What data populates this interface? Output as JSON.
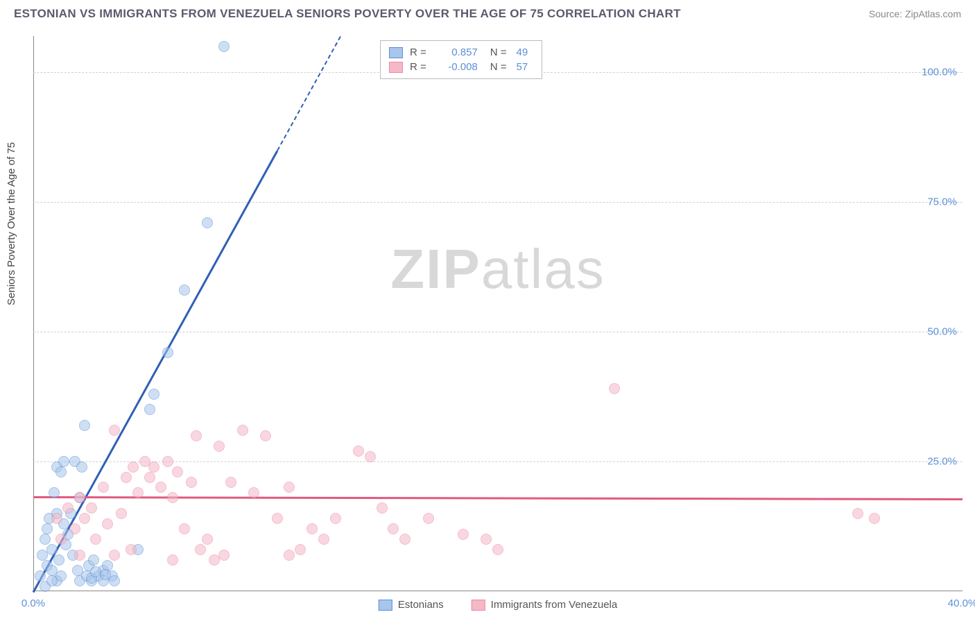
{
  "title": "ESTONIAN VS IMMIGRANTS FROM VENEZUELA SENIORS POVERTY OVER THE AGE OF 75 CORRELATION CHART",
  "source": "Source: ZipAtlas.com",
  "y_axis_label": "Seniors Poverty Over the Age of 75",
  "watermark_bold": "ZIP",
  "watermark_light": "atlas",
  "chart": {
    "type": "scatter",
    "xlim": [
      0,
      40
    ],
    "ylim": [
      0,
      107
    ],
    "x_ticks": [
      0,
      40
    ],
    "x_tick_labels": [
      "0.0%",
      "40.0%"
    ],
    "y_ticks": [
      25,
      50,
      75,
      100
    ],
    "y_tick_labels": [
      "25.0%",
      "50.0%",
      "75.0%",
      "100.0%"
    ],
    "background_color": "#ffffff",
    "grid_color": "#d0d0d0",
    "axis_color": "#888888",
    "tick_label_color": "#5b8fd9",
    "tick_fontsize": 15,
    "point_radius": 8,
    "series": [
      {
        "name": "Estonians",
        "fill": "#a8c5eb",
        "stroke": "#5b8fd9",
        "fill_opacity": 0.55,
        "r": 0.857,
        "n": 49,
        "trend": {
          "slope": 8.1,
          "intercept": 0,
          "color": "#2f5fb5",
          "dash_from_x": 10.5
        },
        "points": [
          [
            0.3,
            3
          ],
          [
            0.4,
            7
          ],
          [
            0.5,
            10
          ],
          [
            0.6,
            12
          ],
          [
            0.6,
            5
          ],
          [
            0.7,
            14
          ],
          [
            0.8,
            8
          ],
          [
            0.8,
            4
          ],
          [
            0.9,
            19
          ],
          [
            1.0,
            24
          ],
          [
            1.0,
            15
          ],
          [
            1.1,
            6
          ],
          [
            1.2,
            23
          ],
          [
            1.3,
            25
          ],
          [
            1.3,
            13
          ],
          [
            1.4,
            9
          ],
          [
            1.5,
            11
          ],
          [
            1.6,
            15
          ],
          [
            1.7,
            7
          ],
          [
            1.8,
            25
          ],
          [
            1.9,
            4
          ],
          [
            2.0,
            18
          ],
          [
            2.0,
            2
          ],
          [
            2.1,
            24
          ],
          [
            2.2,
            32
          ],
          [
            2.3,
            3
          ],
          [
            2.4,
            5
          ],
          [
            2.5,
            2
          ],
          [
            2.6,
            6
          ],
          [
            2.8,
            3
          ],
          [
            3.0,
            4
          ],
          [
            3.0,
            2
          ],
          [
            3.2,
            5
          ],
          [
            3.4,
            3
          ],
          [
            3.5,
            2
          ],
          [
            4.5,
            8
          ],
          [
            2.5,
            2.5
          ],
          [
            2.7,
            3.8
          ],
          [
            3.1,
            3.2
          ],
          [
            5.0,
            35
          ],
          [
            5.2,
            38
          ],
          [
            5.8,
            46
          ],
          [
            6.5,
            58
          ],
          [
            7.5,
            71
          ],
          [
            8.2,
            105
          ],
          [
            1.0,
            2
          ],
          [
            0.5,
            1
          ],
          [
            0.8,
            2
          ],
          [
            1.2,
            3
          ]
        ]
      },
      {
        "name": "Immigrants from Venezuela",
        "fill": "#f5b8c7",
        "stroke": "#e88aa3",
        "fill_opacity": 0.55,
        "r": -0.008,
        "n": 57,
        "trend": {
          "slope": -0.01,
          "intercept": 18.3,
          "color": "#e05a80",
          "dash_from_x": 999
        },
        "points": [
          [
            1.0,
            14
          ],
          [
            1.2,
            10
          ],
          [
            1.5,
            16
          ],
          [
            1.8,
            12
          ],
          [
            2.0,
            18
          ],
          [
            2.2,
            14
          ],
          [
            2.5,
            16
          ],
          [
            2.7,
            10
          ],
          [
            3.0,
            20
          ],
          [
            3.2,
            13
          ],
          [
            3.5,
            31
          ],
          [
            3.8,
            15
          ],
          [
            4.0,
            22
          ],
          [
            4.3,
            24
          ],
          [
            4.5,
            19
          ],
          [
            4.8,
            25
          ],
          [
            5.0,
            22
          ],
          [
            5.2,
            24
          ],
          [
            5.5,
            20
          ],
          [
            5.8,
            25
          ],
          [
            6.0,
            18
          ],
          [
            6.2,
            23
          ],
          [
            6.5,
            12
          ],
          [
            6.8,
            21
          ],
          [
            7.0,
            30
          ],
          [
            7.2,
            8
          ],
          [
            7.5,
            10
          ],
          [
            8.0,
            28
          ],
          [
            8.5,
            21
          ],
          [
            9.0,
            31
          ],
          [
            9.5,
            19
          ],
          [
            10.0,
            30
          ],
          [
            10.5,
            14
          ],
          [
            11.0,
            20
          ],
          [
            11.5,
            8
          ],
          [
            12.0,
            12
          ],
          [
            12.5,
            10
          ],
          [
            13.0,
            14
          ],
          [
            14.0,
            27
          ],
          [
            14.5,
            26
          ],
          [
            15.0,
            16
          ],
          [
            15.5,
            12
          ],
          [
            16.0,
            10
          ],
          [
            17.0,
            14
          ],
          [
            18.5,
            11
          ],
          [
            19.5,
            10
          ],
          [
            7.8,
            6
          ],
          [
            8.2,
            7
          ],
          [
            6.0,
            6
          ],
          [
            11.0,
            7
          ],
          [
            20.0,
            8
          ],
          [
            25.0,
            39
          ],
          [
            35.5,
            15
          ],
          [
            36.2,
            14
          ],
          [
            2.0,
            7
          ],
          [
            3.5,
            7
          ],
          [
            4.2,
            8
          ]
        ]
      }
    ],
    "legend_top": {
      "r_label": "R =",
      "n_label": "N ="
    },
    "legend_bottom": [
      {
        "label": "Estonians",
        "fill": "#a8c5eb",
        "stroke": "#5b8fd9"
      },
      {
        "label": "Immigrants from Venezuela",
        "fill": "#f5b8c7",
        "stroke": "#e88aa3"
      }
    ]
  }
}
